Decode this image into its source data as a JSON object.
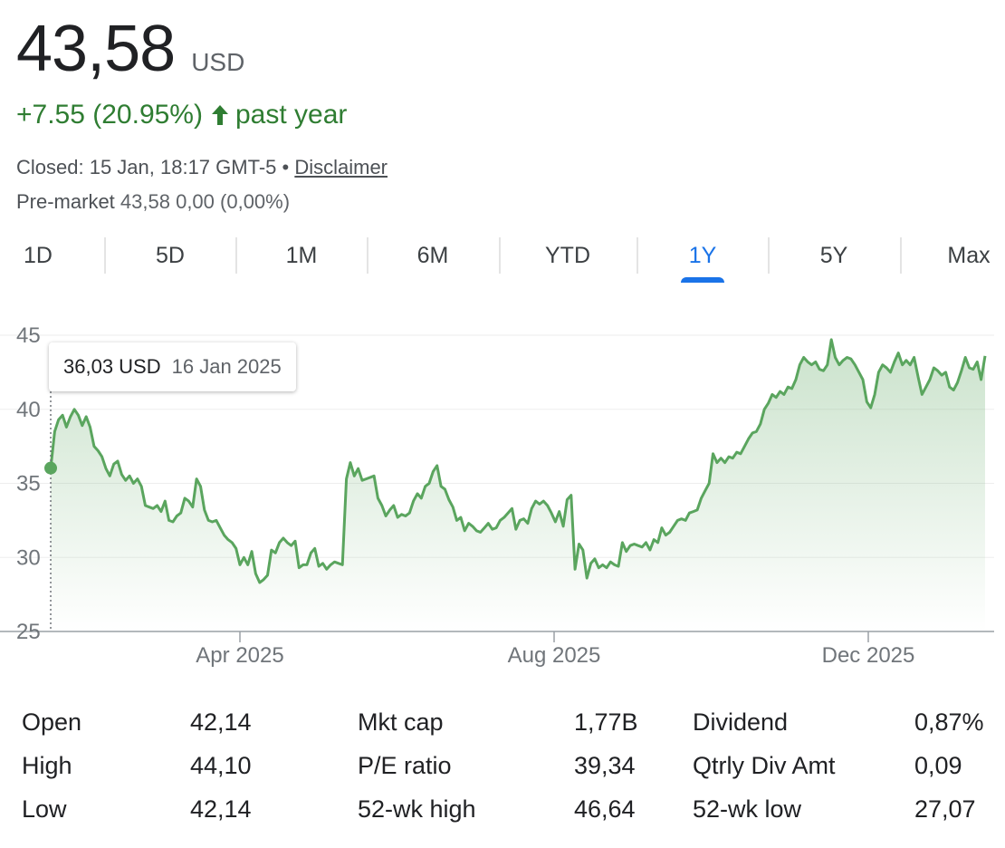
{
  "header": {
    "price": "43,58",
    "currency": "USD",
    "change": "+7.55 (20.95%)",
    "change_period": "past year",
    "closed_text": "Closed: 15 Jan, 18:17 GMT-5 •",
    "disclaimer": "Disclaimer",
    "premarket_label": "Pre-market",
    "premarket_value": "43,58 0,00 (0,00%)",
    "accent_color": "#2f7d32"
  },
  "tabs": [
    {
      "label": "1D",
      "active": false
    },
    {
      "label": "5D",
      "active": false
    },
    {
      "label": "1M",
      "active": false
    },
    {
      "label": "6M",
      "active": false
    },
    {
      "label": "YTD",
      "active": false
    },
    {
      "label": "1Y",
      "active": true
    },
    {
      "label": "5Y",
      "active": false
    },
    {
      "label": "Max",
      "active": false
    }
  ],
  "tooltip": {
    "value": "36,03 USD",
    "date": "16 Jan 2025"
  },
  "chart_data": {
    "type": "area",
    "y_ticks": [
      "45",
      "40",
      "35",
      "30",
      "25"
    ],
    "ylim": [
      25,
      45
    ],
    "x_ticks": [
      "Apr 2025",
      "Aug 2025",
      "Dec 2025"
    ],
    "grid": true,
    "line_color": "#5aa55e",
    "series": [
      {
        "values": [
          36.03,
          38.5,
          39.3,
          39.6,
          38.8,
          39.5,
          40.0,
          39.6,
          38.9,
          39.5,
          38.8,
          37.5,
          37.2,
          36.8,
          36.0,
          35.5,
          36.3,
          36.5,
          35.6,
          35.2,
          35.5,
          35.0,
          35.3,
          34.8,
          33.5,
          33.4,
          33.3,
          33.5,
          33.1,
          33.8,
          32.5,
          32.4,
          32.8,
          33.0,
          34.0,
          33.8,
          33.4,
          35.3,
          34.8,
          33.2,
          32.5,
          32.4,
          32.5,
          32.0,
          31.5,
          31.2,
          31.0,
          30.6,
          29.5,
          30.0,
          29.5,
          30.4,
          28.9,
          28.3,
          28.5,
          28.8,
          30.5,
          30.3,
          31.0,
          31.3,
          31.0,
          30.8,
          31.1,
          29.3,
          29.5,
          29.5,
          30.3,
          30.6,
          29.4,
          29.6,
          29.2,
          29.5,
          29.7,
          29.6,
          29.5,
          35.3,
          36.4,
          35.5,
          36.0,
          35.2,
          35.3,
          35.4,
          35.5,
          34.0,
          33.5,
          32.8,
          33.2,
          33.5,
          32.7,
          32.9,
          32.8,
          33.0,
          33.8,
          34.3,
          34.0,
          34.8,
          35.0,
          35.8,
          36.2,
          34.8,
          34.6,
          33.9,
          33.4,
          32.5,
          32.7,
          31.8,
          32.3,
          32.1,
          31.8,
          31.7,
          32.0,
          32.3,
          31.9,
          32.0,
          32.5,
          32.7,
          33.0,
          33.3,
          31.9,
          32.5,
          32.6,
          32.3,
          33.3,
          33.8,
          33.6,
          33.8,
          33.5,
          33.0,
          32.4,
          33.1,
          32.1,
          33.9,
          34.2,
          29.2,
          30.9,
          30.5,
          28.6,
          29.6,
          29.9,
          29.3,
          29.5,
          29.3,
          29.7,
          29.5,
          29.4,
          31.0,
          30.4,
          30.8,
          30.9,
          30.8,
          30.7,
          31.0,
          30.5,
          31.2,
          31.0,
          32.0,
          31.5,
          31.7,
          32.1,
          32.5,
          32.6,
          32.5,
          33.0,
          33.1,
          33.2,
          34.0,
          34.5,
          35.0,
          37.0,
          36.4,
          36.7,
          36.4,
          36.8,
          36.7,
          37.1,
          37.0,
          37.5,
          38.0,
          38.4,
          38.5,
          39.0,
          40.0,
          40.4,
          41.0,
          40.8,
          41.2,
          41.0,
          41.5,
          41.4,
          42.0,
          43.0,
          43.5,
          43.2,
          43.0,
          43.2,
          42.7,
          42.6,
          43.0,
          44.7,
          43.5,
          43.0,
          43.3,
          43.5,
          43.4,
          43.0,
          42.5,
          42.0,
          40.5,
          40.1,
          41.0,
          42.5,
          43.0,
          42.8,
          42.5,
          43.2,
          43.8,
          43.0,
          43.3,
          43.0,
          43.5,
          42.2,
          41.0,
          41.5,
          42.0,
          42.8,
          42.6,
          42.3,
          42.5,
          41.5,
          41.3,
          41.8,
          42.6,
          43.5,
          42.8,
          42.7,
          43.2,
          42.0,
          43.6
        ]
      }
    ]
  },
  "stats": {
    "rows": [
      {
        "c1_label": "Open",
        "c1_value": "42,14",
        "c2_label": "Mkt cap",
        "c2_value": "1,77B",
        "c3_label": "Dividend",
        "c3_value": "0,87%"
      },
      {
        "c1_label": "High",
        "c1_value": "44,10",
        "c2_label": "P/E ratio",
        "c2_value": "39,34",
        "c3_label": "Qtrly Div Amt",
        "c3_value": "0,09"
      },
      {
        "c1_label": "Low",
        "c1_value": "42,14",
        "c2_label": "52-wk high",
        "c2_value": "46,64",
        "c3_label": "52-wk low",
        "c3_value": "27,07"
      }
    ]
  }
}
